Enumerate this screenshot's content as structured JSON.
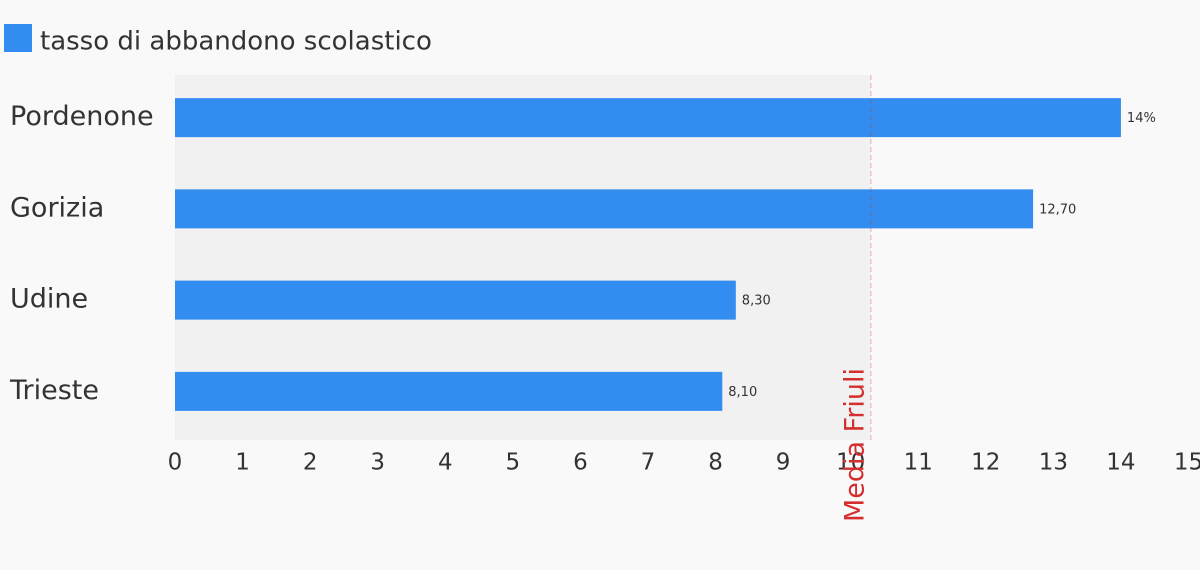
{
  "chart_data": {
    "type": "bar",
    "orientation": "horizontal",
    "categories": [
      "Pordenone",
      "Gorizia",
      "Udine",
      "Trieste"
    ],
    "series": [
      {
        "name": "tasso di abbandono scolastico",
        "color": "#338cf0",
        "values": [
          14,
          12.7,
          8.3,
          8.1
        ],
        "value_labels": [
          "14%",
          "12,70",
          "8,30",
          "8,10"
        ]
      }
    ],
    "xlim": [
      0,
      15
    ],
    "xticks": [
      0,
      1,
      2,
      3,
      4,
      5,
      6,
      7,
      8,
      9,
      10,
      11,
      12,
      13,
      14,
      15
    ],
    "reference_line": {
      "value": 10.3,
      "label": "Media Friuli",
      "color": "#d32f2f"
    }
  }
}
